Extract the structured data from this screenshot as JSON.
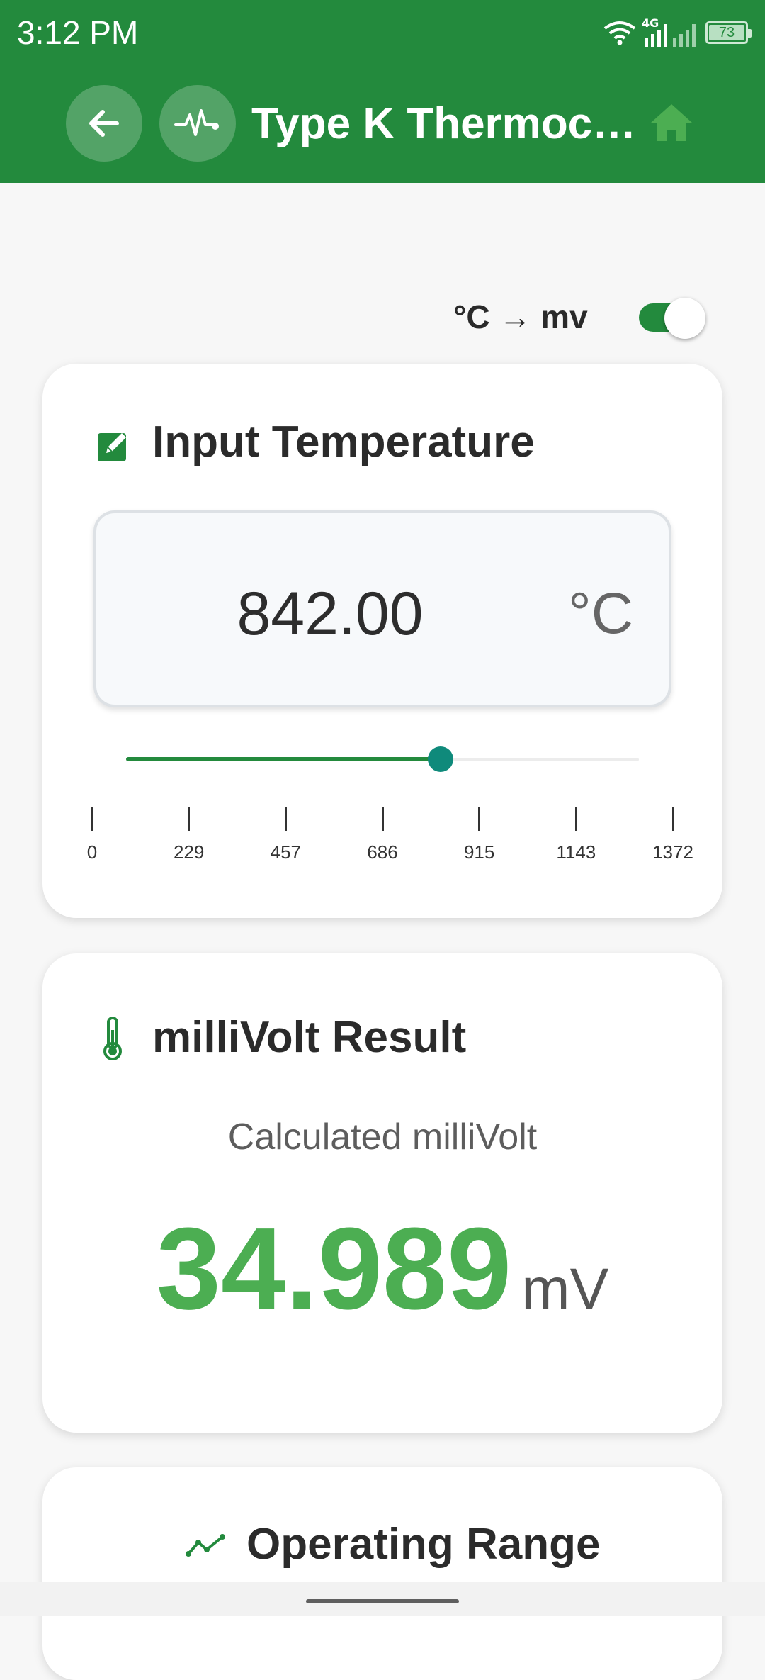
{
  "status_bar": {
    "time": "3:12 PM",
    "network": "4G",
    "battery": "73"
  },
  "appbar": {
    "title": "Type K Thermocouple",
    "back_icon": "arrow-left-icon",
    "pulse_icon": "pulse-icon",
    "home_icon": "home-icon",
    "accent_color": "#238a3d"
  },
  "mode_toggle": {
    "label": "°C → mv",
    "enabled": true
  },
  "input_card": {
    "title": "Input Temperature",
    "icon": "edit-square-icon",
    "value": "842.00",
    "unit": "°C",
    "slider": {
      "min": 0,
      "max": 1372,
      "value": 842,
      "ticks": [
        "0",
        "229",
        "457",
        "686",
        "915",
        "1143",
        "1372"
      ]
    }
  },
  "result_card": {
    "title": "milliVolt Result",
    "icon": "thermometer-icon",
    "subtitle": "Calculated milliVolt",
    "value": "34.989",
    "unit": "mV",
    "value_color": "#4cae52"
  },
  "range_card": {
    "title": "Operating Range",
    "icon": "trend-line-icon"
  }
}
